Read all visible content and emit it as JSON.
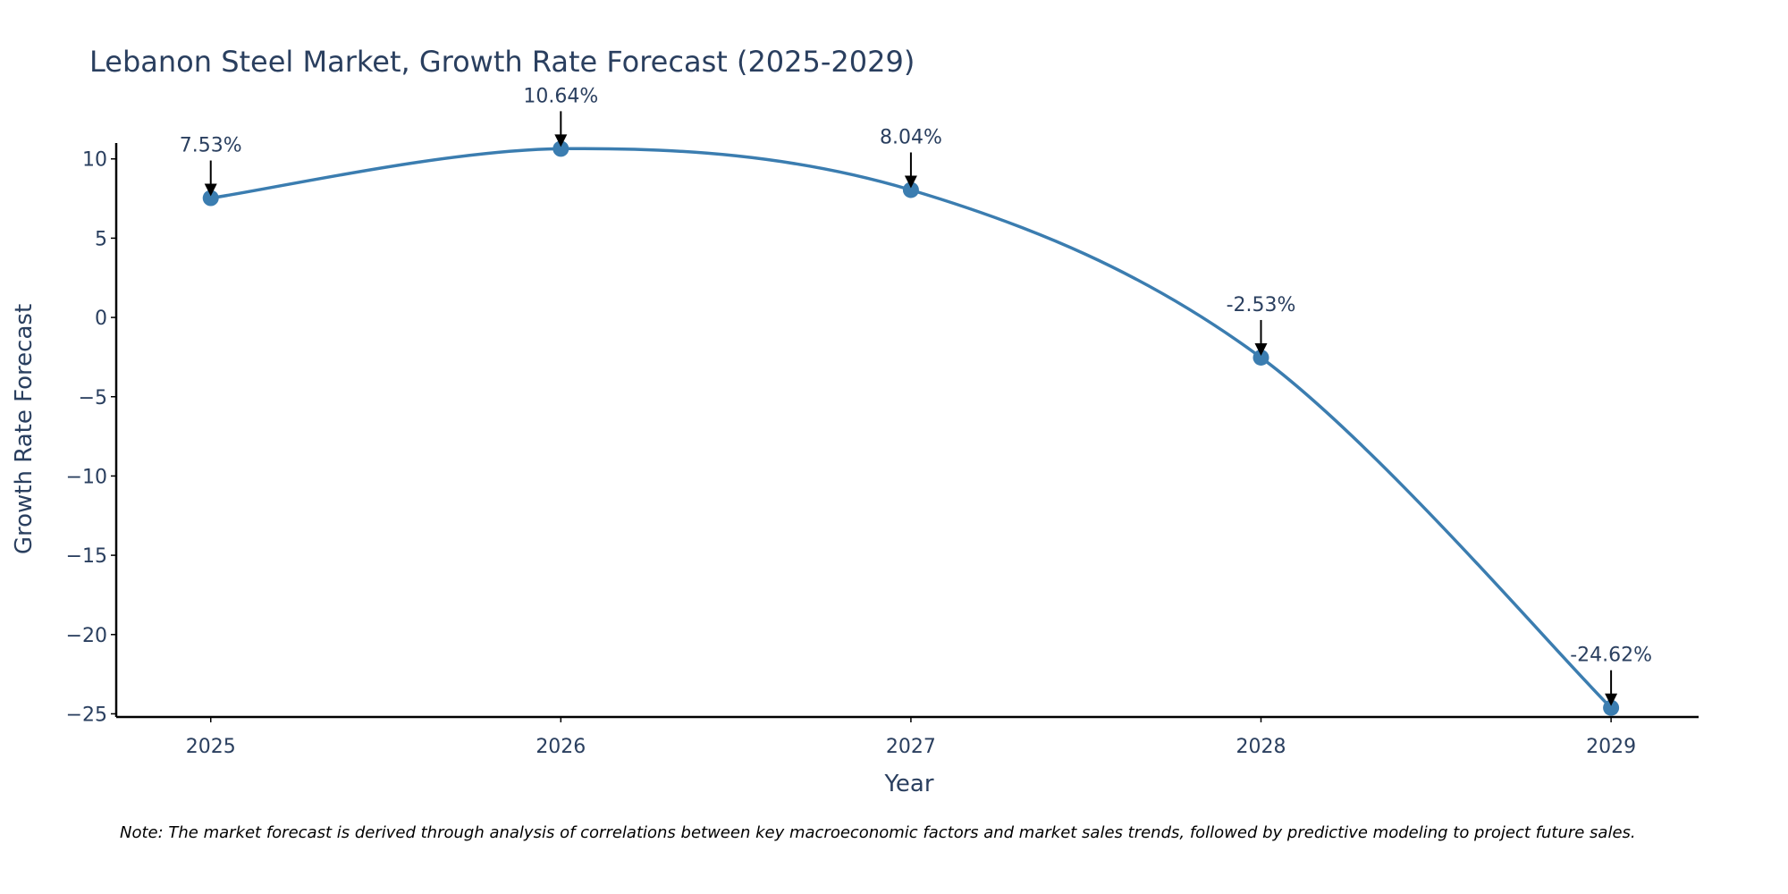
{
  "chart_data": {
    "type": "line",
    "title": "Lebanon Steel Market, Growth Rate Forecast (2025-2029)",
    "xlabel": "Year",
    "ylabel": "Growth Rate Forecast",
    "categories": [
      "2025",
      "2026",
      "2027",
      "2028",
      "2029"
    ],
    "x": [
      2025,
      2026,
      2027,
      2028,
      2029
    ],
    "series": [
      {
        "name": "Growth Rate Forecast",
        "values": [
          7.53,
          10.64,
          8.04,
          -2.53,
          -24.62
        ],
        "color": "#3b7db0",
        "line_shape": "spline",
        "markers": true
      }
    ],
    "annotations": [
      "7.53%",
      "10.64%",
      "8.04%",
      "-2.53%",
      "-24.62%"
    ],
    "xlim": [
      2024.73,
      2029.25
    ],
    "ylim": [
      -25.2,
      11
    ],
    "y_ticks": [
      10,
      5,
      0,
      -5,
      -10,
      -15,
      -20,
      -25
    ],
    "y_tick_labels": [
      "10",
      "5",
      "0",
      "−5",
      "−10",
      "−15",
      "−20",
      "−25"
    ],
    "x_ticks": [
      2025,
      2026,
      2027,
      2028,
      2029
    ],
    "x_tick_labels": [
      "2025",
      "2026",
      "2027",
      "2028",
      "2029"
    ],
    "grid": false,
    "note": "Note: The market forecast is derived through analysis of correlations between key macroeconomic factors and market sales trends, followed by predictive modeling to project future sales."
  }
}
